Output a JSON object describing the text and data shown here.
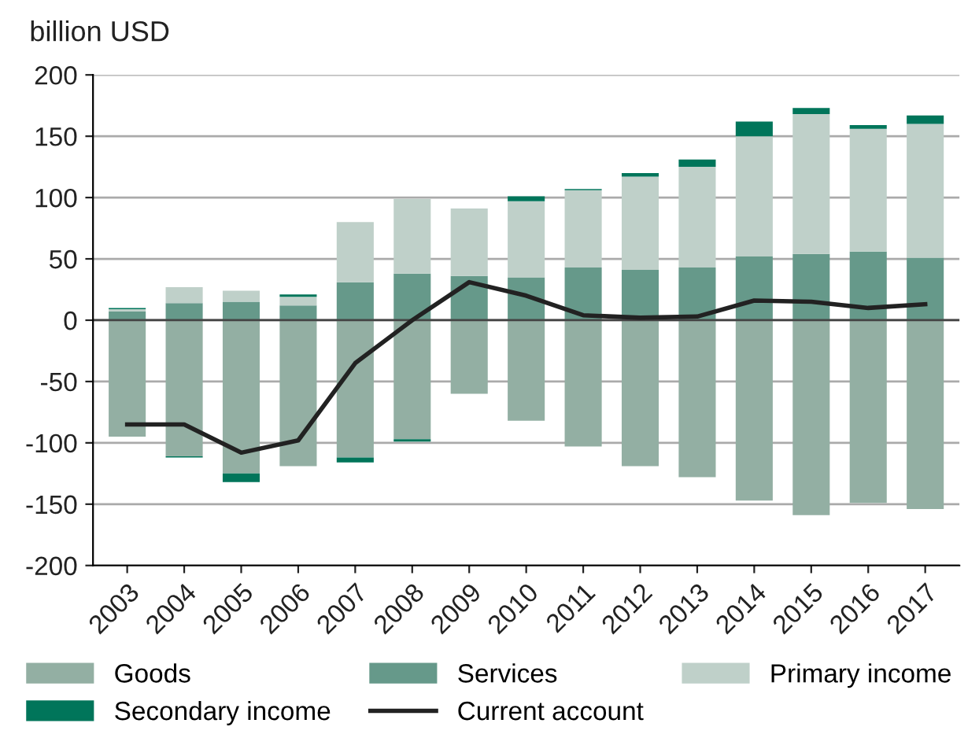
{
  "chart_data": {
    "type": "bar",
    "stacked": true,
    "ylabel": "billion USD",
    "categories": [
      "2003",
      "2004",
      "2005",
      "2006",
      "2007",
      "2008",
      "2009",
      "2010",
      "2011",
      "2012",
      "2013",
      "2014",
      "2015",
      "2016",
      "2017"
    ],
    "series": [
      {
        "name": "Goods",
        "color": "#93afa3",
        "values": [
          -95,
          -111,
          -125,
          -119,
          -112,
          -97,
          -60,
          -82,
          -103,
          -119,
          -128,
          -147,
          -159,
          -149,
          -154
        ]
      },
      {
        "name": "Services",
        "color": "#66998a",
        "values": [
          7,
          14,
          15,
          12,
          31,
          38,
          36,
          35,
          43,
          41,
          43,
          52,
          54,
          56,
          51
        ]
      },
      {
        "name": "Primary income",
        "color": "#bfd0c9",
        "values": [
          2,
          13,
          9,
          7,
          49,
          61,
          55,
          62,
          63,
          76,
          82,
          98,
          114,
          100,
          109
        ]
      },
      {
        "name": "Secondary income",
        "color": "#00755a",
        "values": [
          1,
          -1,
          -7,
          2,
          -4,
          -2,
          null,
          4,
          1,
          3,
          6,
          12,
          5,
          3,
          7
        ]
      },
      {
        "name": "Current account",
        "type": "line",
        "color": "#222222",
        "values": [
          -85,
          -85,
          -108,
          -98,
          -35,
          0,
          31,
          20,
          4,
          2,
          3,
          16,
          15,
          10,
          13
        ]
      }
    ],
    "ylim": [
      -200,
      200
    ],
    "yticks": [
      -200,
      -150,
      -100,
      -50,
      0,
      50,
      100,
      150,
      200
    ],
    "grid": "y",
    "legend": "bottom"
  }
}
